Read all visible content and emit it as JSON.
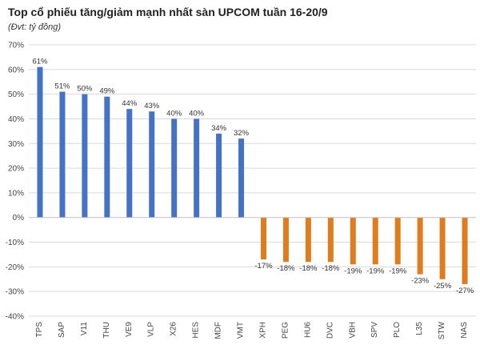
{
  "title": "Top cổ phiếu tăng/giảm mạnh nhất sàn UPCOM tuần 16-20/9",
  "subtitle": "(Đvt: tỷ đồng)",
  "colors": {
    "positive": "#4472C4",
    "negative": "#E07B1E",
    "grid": "#d9d9d9",
    "axis": "#bfbfbf"
  },
  "chart_data": {
    "type": "bar",
    "title": "Top cổ phiếu tăng/giảm mạnh nhất sàn UPCOM tuần 16-20/9",
    "subtitle": "(Đvt: tỷ đồng)",
    "categories": [
      "TPS",
      "SAP",
      "V11",
      "THU",
      "VE9",
      "VLP",
      "X26",
      "HES",
      "MDF",
      "VMT",
      "XPH",
      "PEG",
      "HU6",
      "DVC",
      "VBH",
      "SPV",
      "PLO",
      "L35",
      "STW",
      "NAS"
    ],
    "values": [
      61,
      51,
      50,
      49,
      44,
      43,
      40,
      40,
      34,
      32,
      -17,
      -18,
      -18,
      -18,
      -19,
      -19,
      -19,
      -23,
      -25,
      -27
    ],
    "data_labels": [
      "61%",
      "51%",
      "50%",
      "49%",
      "44%",
      "43%",
      "40%",
      "40%",
      "34%",
      "32%",
      "-17%",
      "-18%",
      "-18%",
      "-18%",
      "-19%",
      "-19%",
      "-19%",
      "-23%",
      "-25%",
      "-27%"
    ],
    "ylim": [
      -40,
      70
    ],
    "yticks": [
      70,
      60,
      50,
      40,
      30,
      20,
      10,
      0,
      -10,
      -20,
      -30,
      -40
    ],
    "ytick_labels": [
      "70%",
      "60%",
      "50%",
      "40%",
      "30%",
      "20%",
      "10%",
      "0%",
      "-10%",
      "-20%",
      "-30%",
      "-40%"
    ],
    "grid": true,
    "legend": "none"
  }
}
